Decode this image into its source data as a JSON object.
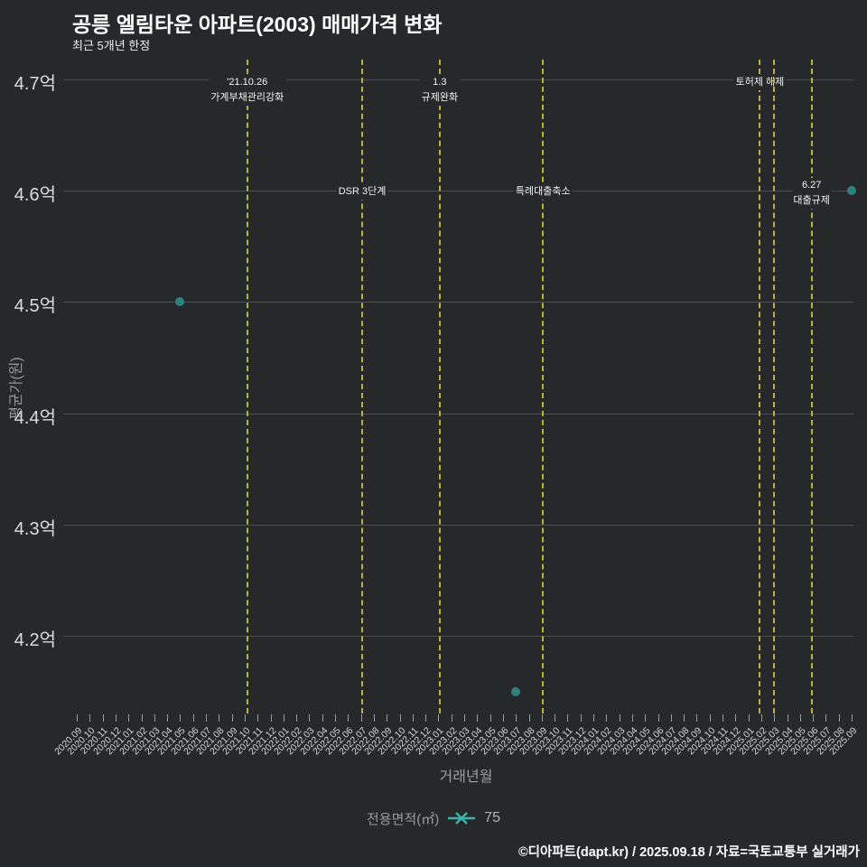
{
  "page": {
    "background": "#26282a"
  },
  "header": {
    "title": "공릉 엘림타운 아파트(2003) 매매가격 변화",
    "subtitle": "최근 5개년 한정"
  },
  "legend": {
    "label": "전용면적(㎡)",
    "value": "75",
    "marker": "line-x-marker-icon",
    "marker_color": "#3cb4ab"
  },
  "footer": {
    "credit": "©디아파트(dapt.kr) / 2025.09.18 / 자료=국토교통부 실거래가"
  },
  "colors": {
    "background": "#26282a",
    "grid": "#4b4d4f",
    "event_line": "#b6b63c",
    "point": "#2e8181",
    "legend_marker": "#3cb4ab"
  },
  "chart_data": {
    "type": "scatter",
    "title": "공릉 엘림타운 아파트(2003) 매매가격 변화",
    "subtitle": "최근 5개년 한정",
    "xlabel": "거래년월",
    "ylabel": "평균가(원)",
    "ylim": [
      4.13,
      4.72
    ],
    "grid": true,
    "legend_position": "bottom",
    "y_ticks": [
      {
        "label": "4.7억",
        "value": 4.7
      },
      {
        "label": "4.6억",
        "value": 4.6
      },
      {
        "label": "4.5억",
        "value": 4.5
      },
      {
        "label": "4.4억",
        "value": 4.4
      },
      {
        "label": "4.3억",
        "value": 4.3
      },
      {
        "label": "4.2억",
        "value": 4.2
      }
    ],
    "x_categories": [
      "2020.09",
      "2020.10",
      "2020.11",
      "2020.12",
      "2021.01",
      "2021.02",
      "2021.03",
      "2021.04",
      "2021.05",
      "2021.06",
      "2021.07",
      "2021.08",
      "2021.09",
      "2021.10",
      "2021.11",
      "2021.12",
      "2022.01",
      "2022.02",
      "2022.03",
      "2022.04",
      "2022.05",
      "2022.06",
      "2022.07",
      "2022.08",
      "2022.09",
      "2022.10",
      "2022.11",
      "2022.12",
      "2023.01",
      "2023.02",
      "2023.03",
      "2023.04",
      "2023.05",
      "2023.06",
      "2023.07",
      "2023.08",
      "2023.09",
      "2023.10",
      "2023.11",
      "2023.12",
      "2024.01",
      "2024.02",
      "2024.03",
      "2024.04",
      "2024.05",
      "2024.06",
      "2024.07",
      "2024.08",
      "2024.09",
      "2024.10",
      "2024.11",
      "2024.12",
      "2025.01",
      "2025.02",
      "2025.03",
      "2025.04",
      "2025.05",
      "2025.06",
      "2025.07",
      "2025.08",
      "2025.09"
    ],
    "series": [
      {
        "name": "75",
        "color": "#2e8181",
        "points": [
          {
            "month": "2021.05",
            "value": 4.5
          },
          {
            "month": "2023.07",
            "value": 4.15
          },
          {
            "month": "2025.09",
            "value": 4.6
          }
        ]
      }
    ],
    "events": [
      {
        "month_index": 13.2,
        "lines": [
          "'21.10.26",
          "가계부채관리강화"
        ],
        "level": "top"
      },
      {
        "month_index": 22.1,
        "lines": [
          "DSR 3단계"
        ],
        "level": "mid"
      },
      {
        "month_index": 28.1,
        "lines": [
          "1.3",
          "규제완화"
        ],
        "level": "top"
      },
      {
        "month_index": 36.1,
        "lines": [
          "특례대출축소"
        ],
        "level": "mid"
      },
      {
        "month_index": 52.9,
        "lines": [
          "토허제 해제"
        ],
        "level": "top"
      },
      {
        "month_index": 54.0,
        "lines": [],
        "level": "top"
      },
      {
        "month_index": 56.9,
        "lines": [
          "6.27",
          "대출규제"
        ],
        "level": "mid"
      }
    ]
  }
}
